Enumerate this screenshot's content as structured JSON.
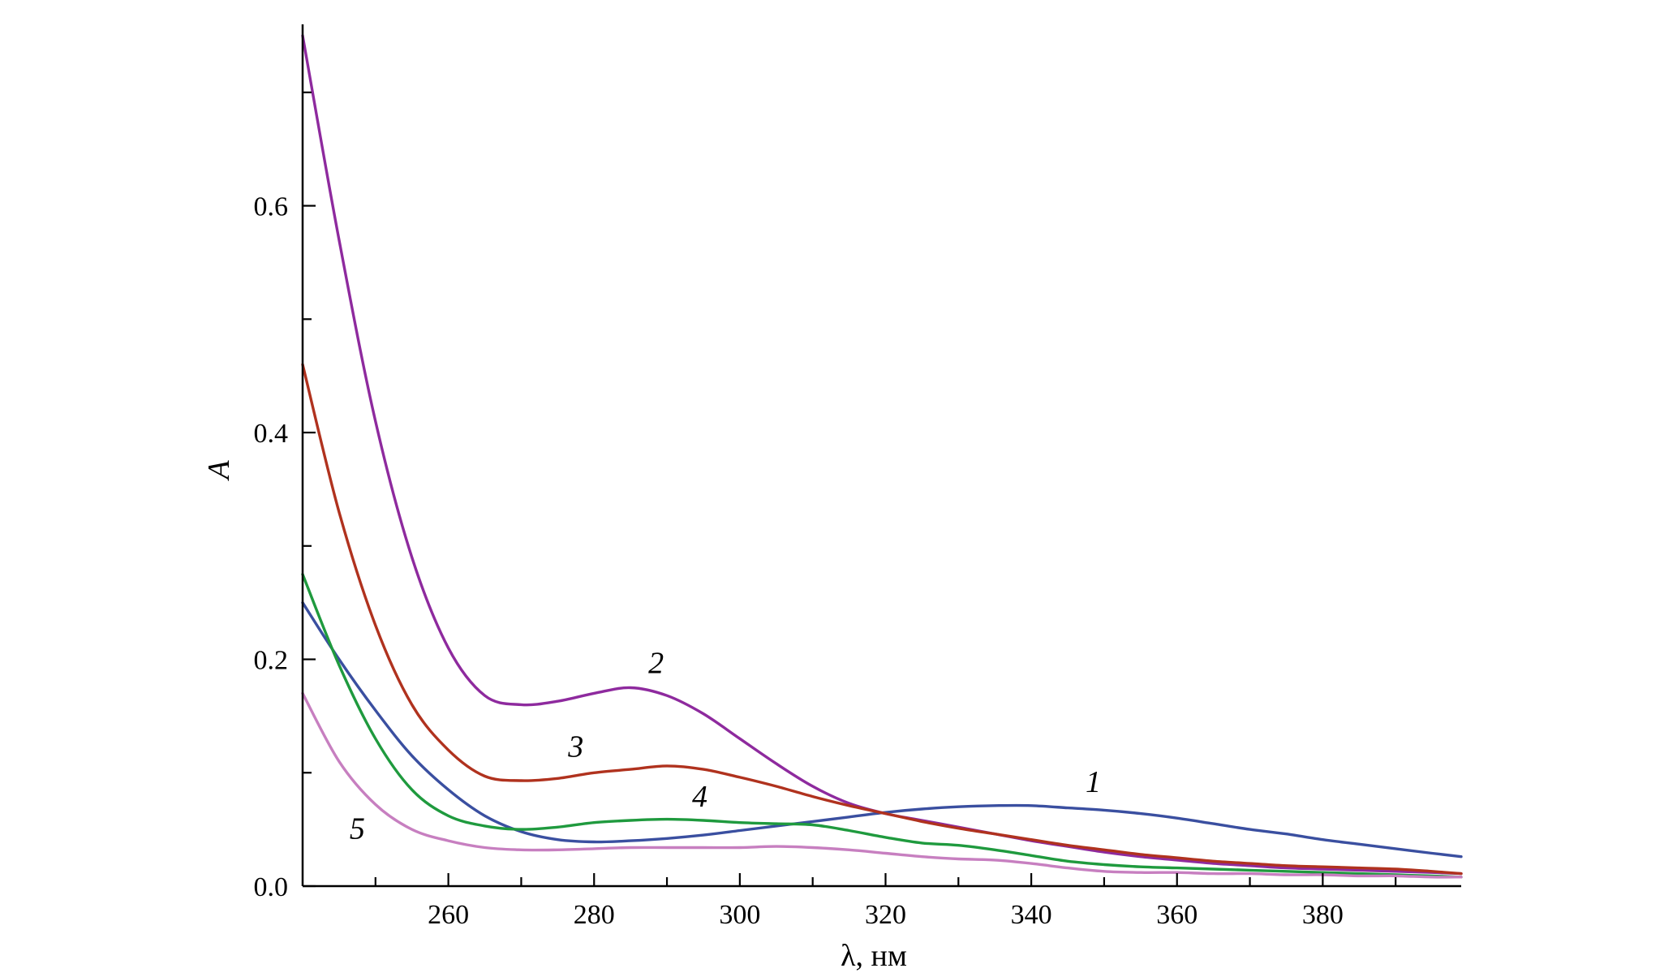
{
  "chart_data": {
    "type": "line",
    "title": "",
    "xlabel": "λ, нм",
    "ylabel": "A",
    "xlim": [
      240,
      399
    ],
    "ylim": [
      0.0,
      0.76
    ],
    "x_ticks_major": [
      260,
      280,
      300,
      320,
      340,
      360,
      380
    ],
    "x_tick_labels": [
      "260",
      "280",
      "300",
      "320",
      "340",
      "360",
      "380"
    ],
    "y_ticks_major": [
      0.0,
      0.2,
      0.4,
      0.6
    ],
    "y_tick_labels": [
      "0.0",
      "0.2",
      "0.4",
      "0.6"
    ],
    "grid": false,
    "legend": "none",
    "series": [
      {
        "name": "1",
        "color": "#3a4fa0",
        "x": [
          240,
          245,
          250,
          255,
          260,
          265,
          270,
          275,
          280,
          285,
          290,
          295,
          300,
          305,
          310,
          315,
          320,
          325,
          330,
          335,
          340,
          345,
          350,
          355,
          360,
          365,
          370,
          375,
          380,
          385,
          390,
          395,
          399
        ],
        "y": [
          0.25,
          0.2,
          0.155,
          0.115,
          0.085,
          0.062,
          0.048,
          0.041,
          0.039,
          0.04,
          0.042,
          0.045,
          0.049,
          0.053,
          0.057,
          0.061,
          0.065,
          0.068,
          0.07,
          0.071,
          0.071,
          0.069,
          0.067,
          0.064,
          0.06,
          0.055,
          0.05,
          0.046,
          0.041,
          0.037,
          0.033,
          0.029,
          0.026
        ]
      },
      {
        "name": "2",
        "color": "#8e2a9e",
        "x": [
          240,
          245,
          250,
          255,
          260,
          265,
          270,
          275,
          280,
          285,
          290,
          295,
          300,
          305,
          310,
          315,
          320,
          325,
          330,
          335,
          340,
          345,
          350,
          355,
          360,
          365,
          370,
          375,
          380,
          385,
          390,
          395,
          399
        ],
        "y": [
          0.75,
          0.57,
          0.41,
          0.29,
          0.21,
          0.168,
          0.16,
          0.163,
          0.17,
          0.175,
          0.168,
          0.152,
          0.13,
          0.108,
          0.088,
          0.073,
          0.064,
          0.058,
          0.052,
          0.046,
          0.04,
          0.035,
          0.03,
          0.026,
          0.023,
          0.02,
          0.018,
          0.016,
          0.015,
          0.014,
          0.013,
          0.012,
          0.011
        ]
      },
      {
        "name": "3",
        "color": "#b0321e",
        "x": [
          240,
          245,
          250,
          255,
          260,
          265,
          270,
          275,
          280,
          285,
          290,
          295,
          300,
          305,
          310,
          315,
          320,
          325,
          330,
          335,
          340,
          345,
          350,
          355,
          360,
          365,
          370,
          375,
          380,
          385,
          390,
          395,
          399
        ],
        "y": [
          0.46,
          0.33,
          0.23,
          0.16,
          0.12,
          0.097,
          0.093,
          0.095,
          0.1,
          0.103,
          0.106,
          0.103,
          0.096,
          0.088,
          0.079,
          0.071,
          0.064,
          0.057,
          0.051,
          0.046,
          0.041,
          0.036,
          0.032,
          0.028,
          0.025,
          0.022,
          0.02,
          0.018,
          0.017,
          0.016,
          0.015,
          0.013,
          0.011
        ]
      },
      {
        "name": "4",
        "color": "#1f9a3e",
        "x": [
          240,
          245,
          250,
          255,
          260,
          265,
          270,
          275,
          280,
          285,
          290,
          295,
          300,
          305,
          310,
          315,
          320,
          325,
          330,
          335,
          340,
          345,
          350,
          355,
          360,
          365,
          370,
          375,
          380,
          385,
          390,
          395,
          399
        ],
        "y": [
          0.275,
          0.195,
          0.13,
          0.085,
          0.062,
          0.053,
          0.05,
          0.052,
          0.056,
          0.058,
          0.059,
          0.058,
          0.056,
          0.055,
          0.054,
          0.049,
          0.043,
          0.038,
          0.036,
          0.032,
          0.027,
          0.022,
          0.019,
          0.017,
          0.016,
          0.015,
          0.014,
          0.013,
          0.012,
          0.011,
          0.01,
          0.009,
          0.008
        ]
      },
      {
        "name": "5",
        "color": "#c77fc0",
        "x": [
          240,
          245,
          250,
          255,
          260,
          265,
          270,
          275,
          280,
          285,
          290,
          295,
          300,
          305,
          310,
          315,
          320,
          325,
          330,
          335,
          340,
          345,
          350,
          355,
          360,
          365,
          370,
          375,
          380,
          385,
          390,
          395,
          399
        ],
        "y": [
          0.17,
          0.11,
          0.072,
          0.05,
          0.04,
          0.034,
          0.032,
          0.032,
          0.033,
          0.034,
          0.034,
          0.034,
          0.034,
          0.035,
          0.034,
          0.032,
          0.029,
          0.026,
          0.024,
          0.023,
          0.02,
          0.016,
          0.013,
          0.012,
          0.012,
          0.011,
          0.011,
          0.01,
          0.01,
          0.009,
          0.009,
          0.008,
          0.008
        ]
      }
    ],
    "annotations": [
      {
        "text": "1",
        "x": 348.5,
        "y": 0.083
      },
      {
        "text": "2",
        "x": 288.5,
        "y": 0.188
      },
      {
        "text": "3",
        "x": 277.5,
        "y": 0.114
      },
      {
        "text": "4",
        "x": 294.5,
        "y": 0.07
      },
      {
        "text": "5",
        "x": 247.5,
        "y": 0.042
      }
    ]
  }
}
